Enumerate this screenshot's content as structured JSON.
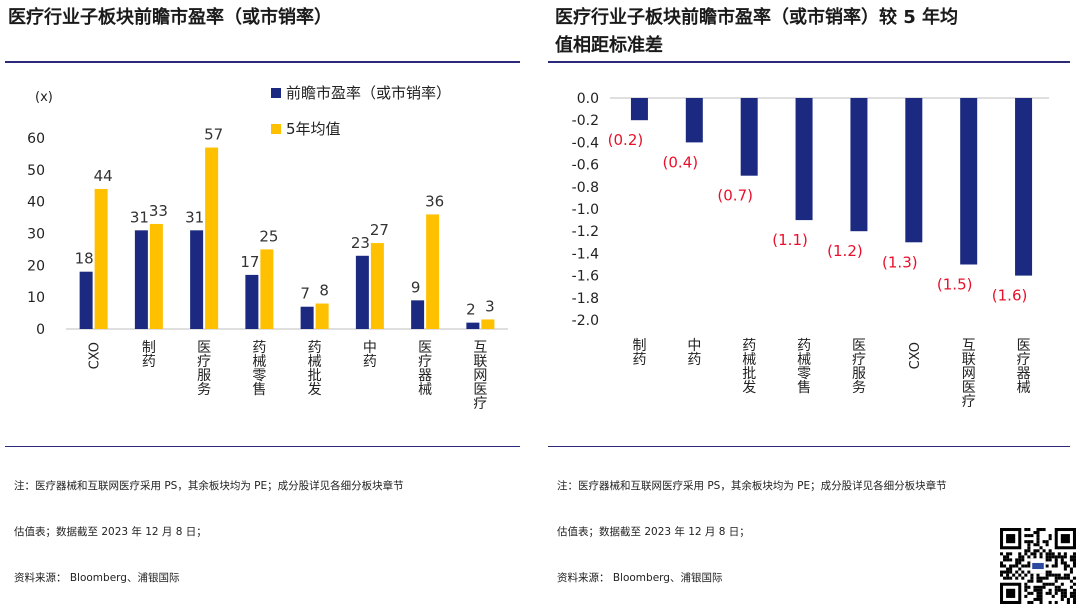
{
  "left": {
    "title": "医疗行业子板块前瞻市盈率（或市销率）",
    "y_unit": "(x)",
    "note_lines": [
      "注：医疗器械和互联网医疗采用 PS，其余板块均为 PE；成分股详见各细分板块章节",
      "估值表；数据截至 2023 年 12 月 8 日；",
      "资料来源： Bloomberg、浦银国际"
    ]
  },
  "right": {
    "title_line1": "医疗行业子板块前瞻市盈率（或市销率）较 5 年均",
    "title_line2": "值相距标准差",
    "note_lines": [
      "注：医疗器械和互联网医疗采用 PS，其余板块均为 PE；成分股详见各细分板块章节",
      "估值表；数据截至 2023 年 12 月 8 日；",
      "资料来源： Bloomberg、浦银国际"
    ]
  },
  "colors": {
    "navy": "#1b2a80",
    "gold": "#ffc000",
    "red": "#e8102a",
    "rule": "#2b2a7a"
  },
  "qr": {
    "icon": "qr-code-icon"
  },
  "chart_data": [
    {
      "type": "bar",
      "title": "医疗行业子板块前瞻市盈率（或市销率）",
      "ylabel": "(x)",
      "categories": [
        "CXO",
        "制药",
        "医疗服务",
        "药械零售",
        "药械批发",
        "中药",
        "医疗器械",
        "互联网医疗"
      ],
      "series": [
        {
          "name": "前瞻市盈率（或市销率）",
          "values": [
            18,
            31,
            31,
            17,
            7,
            23,
            9,
            2
          ]
        },
        {
          "name": "5年均值",
          "values": [
            44,
            33,
            57,
            25,
            8,
            27,
            36,
            3
          ]
        }
      ],
      "ylim": [
        0,
        60
      ],
      "yticks": [
        0,
        10,
        20,
        30,
        40,
        50,
        60
      ],
      "legend": "top-right"
    },
    {
      "type": "bar",
      "title": "医疗行业子板块前瞻市盈率（或市销率）较 5 年均值相距标准差",
      "categories": [
        "制药",
        "中药",
        "药械批发",
        "药械零售",
        "医疗服务",
        "CXO",
        "互联网医疗",
        "医疗器械"
      ],
      "values": [
        -0.2,
        -0.4,
        -0.7,
        -1.1,
        -1.2,
        -1.3,
        -1.5,
        -1.6
      ],
      "data_labels": [
        "(0.2)",
        "(0.4)",
        "(0.7)",
        "(1.1)",
        "(1.2)",
        "(1.3)",
        "(1.5)",
        "(1.6)"
      ],
      "ylim": [
        -2.0,
        0.0
      ],
      "yticks": [
        "0.0",
        "-0.2",
        "-0.4",
        "-0.6",
        "-0.8",
        "-1.0",
        "-1.2",
        "-1.4",
        "-1.6",
        "-1.8",
        "-2.0"
      ]
    }
  ]
}
